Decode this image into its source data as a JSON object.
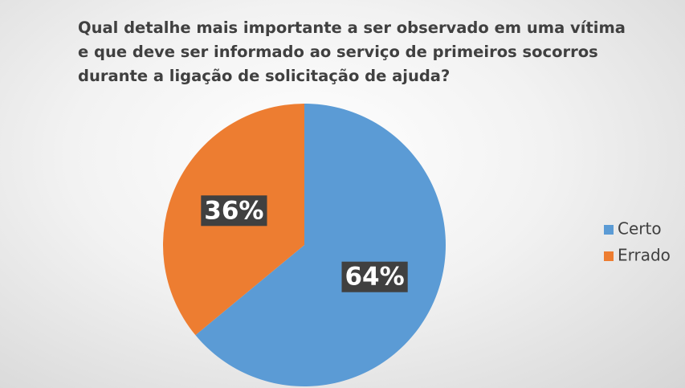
{
  "chart_data": {
    "type": "pie",
    "title": "Qual detalhe mais importante a ser observado em uma vítima e que deve ser informado ao serviço de primeiros socorros durante a ligação de solicitação de ajuda?",
    "categories": [
      "Certo",
      "Errado"
    ],
    "values": [
      64,
      36
    ],
    "value_labels": [
      "64%",
      "36%"
    ],
    "colors": [
      "#5b9bd5",
      "#ed7d31"
    ],
    "legend": "right"
  }
}
